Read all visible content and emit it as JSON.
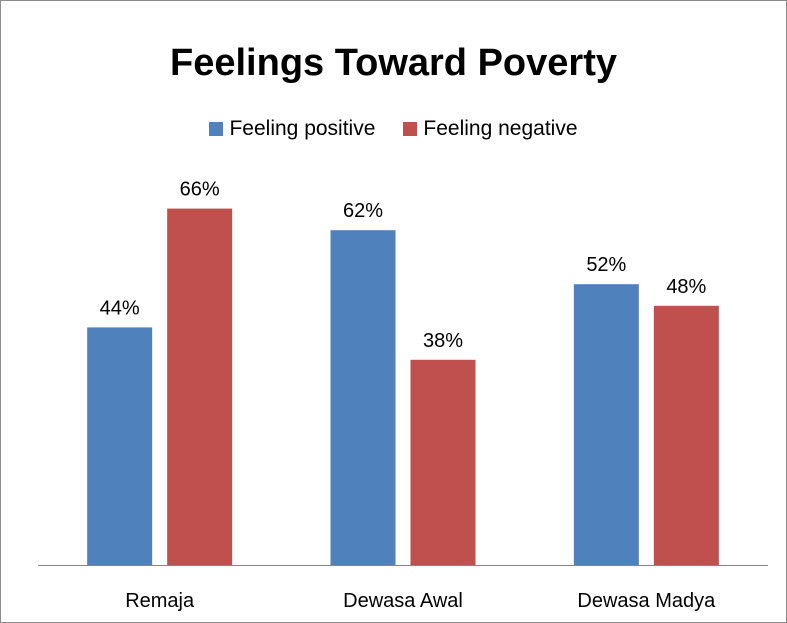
{
  "chart_data": {
    "type": "bar",
    "title": "Feelings Toward Poverty",
    "categories": [
      "Remaja",
      "Dewasa Awal",
      "Dewasa Madya"
    ],
    "series": [
      {
        "name": "Feeling positive",
        "values": [
          44,
          62,
          52
        ],
        "labels": [
          "44%",
          "62%",
          "52%"
        ],
        "color": "#4F81BD"
      },
      {
        "name": "Feeling negative",
        "values": [
          66,
          38,
          48
        ],
        "labels": [
          "66%",
          "38%",
          "48%"
        ],
        "color": "#C0504D"
      }
    ],
    "ylim": [
      0,
      100
    ],
    "grid": false,
    "legend_position": "top"
  }
}
